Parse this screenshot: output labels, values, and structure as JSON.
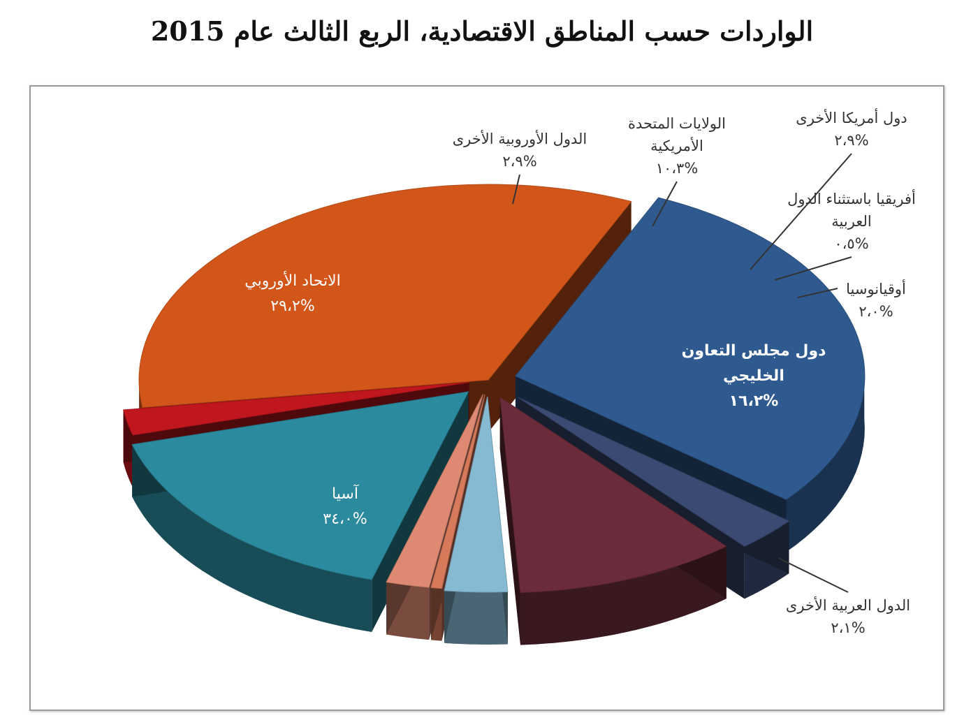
{
  "title": "الواردات حسب المناطق الاقتصادية، الربع الثالث عام 2015",
  "chart_data": {
    "type": "pie",
    "title": "الواردات حسب المناطق الاقتصادية، الربع الثالث عام 2015",
    "unit": "%",
    "slices": [
      {
        "label": "آسيا",
        "value_text": "%٣٤،٠",
        "value": 34.0,
        "color": "#d2561a"
      },
      {
        "label": "الاتحاد الأوروبي",
        "value_text": "%٢٩،٢",
        "value": 29.2,
        "color": "#2f5a8f"
      },
      {
        "label": "الدول الأوروبية الأخرى",
        "value_text": "%٢،٩",
        "value": 2.9,
        "color": "#3a4a72"
      },
      {
        "label": "الولايات المتحدة الأمريكية",
        "value_text": "%١٠،٣",
        "value": 10.3,
        "color": "#6a2c3a"
      },
      {
        "label": "دول أمريكا الأخرى",
        "value_text": "%٢،٩",
        "value": 2.9,
        "color": "#86b9d2"
      },
      {
        "label": "أفريقيا باستثناء الدول العربية",
        "value_text": "%٠،٥",
        "value": 0.5,
        "color": "#d77a5c"
      },
      {
        "label": "أوقيانوسيا",
        "value_text": "%٢،٠",
        "value": 2.0,
        "color": "#de8a72"
      },
      {
        "label": "دول مجلس التعاون الخليجي",
        "value_text": "%١٦،٢",
        "value": 16.2,
        "color": "#2b8a9e"
      },
      {
        "label": "الدول العربية الأخرى",
        "value_text": "%٢،١",
        "value": 2.1,
        "color": "#c0161d"
      }
    ]
  }
}
